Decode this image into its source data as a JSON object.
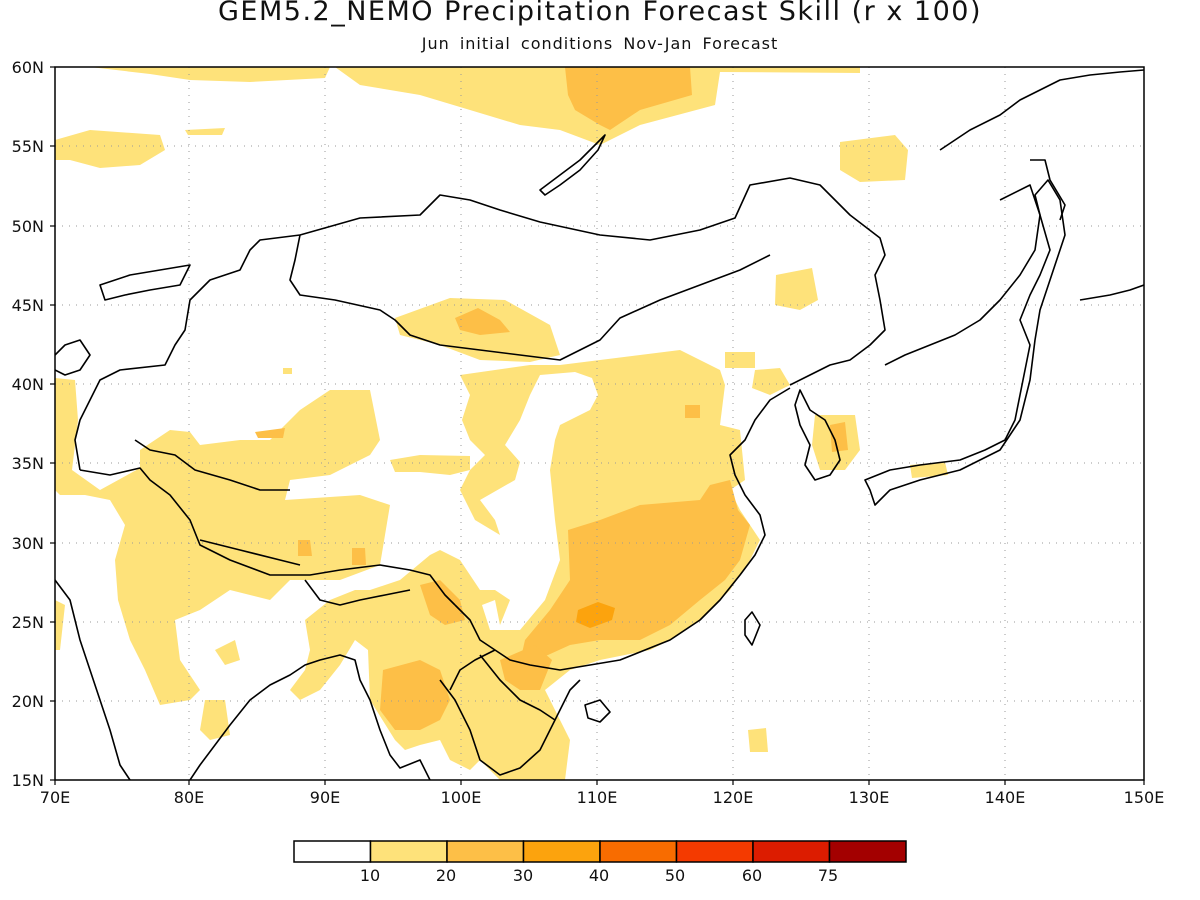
{
  "title": "GEM5.2_NEMO Precipitation Forecast Skill (r x 100)",
  "subtitle": "Jun initial conditions  Nov-Jan Forecast",
  "map": {
    "lon_range": [
      70,
      150
    ],
    "lat_range": [
      15,
      60
    ],
    "lon_ticks": [
      "70E",
      "80E",
      "90E",
      "100E",
      "110E",
      "120E",
      "130E",
      "140E",
      "150E"
    ],
    "lat_ticks": [
      "15N",
      "20N",
      "25N",
      "30N",
      "35N",
      "40N",
      "45N",
      "50N",
      "55N",
      "60N"
    ],
    "grid": "dotted"
  },
  "colorbar": {
    "colors": [
      "#ffffff",
      "#fee27a",
      "#fdbf47",
      "#fca30d",
      "#f86c00",
      "#f43a00",
      "#dc1c00",
      "#a30000"
    ],
    "labels": [
      "10",
      "20",
      "30",
      "40",
      "50",
      "60",
      "75"
    ]
  }
}
